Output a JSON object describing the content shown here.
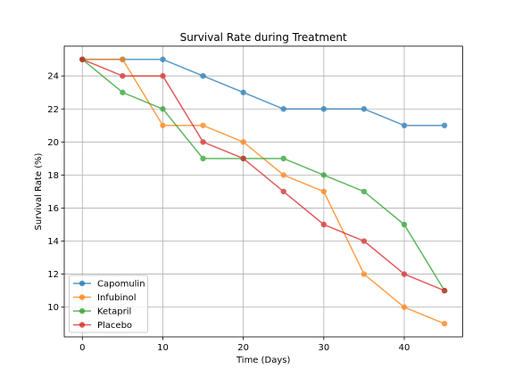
{
  "chart_data": {
    "type": "line",
    "title": "Survival Rate during Treatment",
    "xlabel": "Time (Days)",
    "ylabel": "Survival Rate (%)",
    "xlim": [
      -2.25,
      47.25
    ],
    "ylim": [
      8.2,
      25.8
    ],
    "xticks": [
      0,
      10,
      20,
      30,
      40
    ],
    "yticks": [
      10,
      12,
      14,
      16,
      18,
      20,
      22,
      24
    ],
    "grid": true,
    "legend_position": "lower-left",
    "x": [
      0,
      5,
      10,
      15,
      20,
      25,
      30,
      35,
      40,
      45
    ],
    "series": [
      {
        "name": "Capomulin",
        "color": "#1f77b4",
        "values": [
          25,
          25,
          25,
          24,
          23,
          22,
          22,
          22,
          21,
          21
        ]
      },
      {
        "name": "Infubinol",
        "color": "#ff7f0e",
        "values": [
          25,
          25,
          21,
          21,
          20,
          18,
          17,
          12,
          10,
          9
        ]
      },
      {
        "name": "Ketapril",
        "color": "#2ca02c",
        "values": [
          25,
          23,
          22,
          19,
          19,
          19,
          18,
          17,
          15,
          11
        ]
      },
      {
        "name": "Placebo",
        "color": "#d62728",
        "values": [
          25,
          24,
          24,
          20,
          19,
          17,
          15,
          14,
          12,
          11
        ]
      }
    ]
  }
}
